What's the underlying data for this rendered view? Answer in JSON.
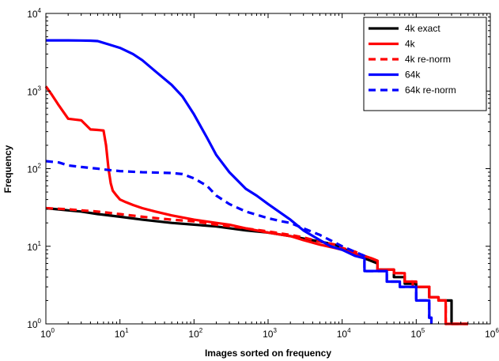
{
  "chart_data": {
    "type": "line",
    "title": "",
    "xlabel": "Images sorted on frequency",
    "ylabel": "Frequency",
    "x_scale": "log",
    "y_scale": "log",
    "xlim": [
      1,
      1000000
    ],
    "ylim": [
      1,
      10000
    ],
    "x_ticks": [
      {
        "value": 1,
        "base": "10",
        "exp": "0"
      },
      {
        "value": 10,
        "base": "10",
        "exp": "1"
      },
      {
        "value": 100,
        "base": "10",
        "exp": "2"
      },
      {
        "value": 1000,
        "base": "10",
        "exp": "3"
      },
      {
        "value": 10000,
        "base": "10",
        "exp": "4"
      },
      {
        "value": 100000,
        "base": "10",
        "exp": "5"
      },
      {
        "value": 1000000,
        "base": "10",
        "exp": "6"
      }
    ],
    "y_ticks": [
      {
        "value": 1,
        "base": "10",
        "exp": "0"
      },
      {
        "value": 10,
        "base": "10",
        "exp": "1"
      },
      {
        "value": 100,
        "base": "10",
        "exp": "2"
      },
      {
        "value": 1000,
        "base": "10",
        "exp": "3"
      },
      {
        "value": 10000,
        "base": "10",
        "exp": "4"
      }
    ],
    "grid": false,
    "legend_position": "top-right",
    "series": [
      {
        "name": "4k exact",
        "color": "#000000",
        "dash": "solid",
        "x": [
          1,
          2,
          3,
          5,
          10,
          20,
          50,
          100,
          200,
          500,
          1000,
          2000,
          5000,
          8000,
          10000,
          15000,
          20000,
          30000,
          30000,
          50000,
          50000,
          70000,
          70000,
          100000,
          100000,
          150000,
          150000,
          200000,
          200000,
          300000,
          300000,
          500000
        ],
        "y": [
          31,
          29,
          28,
          26,
          24,
          22,
          20,
          19,
          18,
          16,
          15,
          13.5,
          11.5,
          10.5,
          9.5,
          8,
          7,
          6,
          5,
          5,
          4,
          4,
          3.3,
          3.3,
          3,
          3,
          2.2,
          2.2,
          2,
          2,
          1,
          1
        ]
      },
      {
        "name": "4k",
        "color": "#ff0000",
        "dash": "solid",
        "x": [
          1,
          1.2,
          1.5,
          2,
          3,
          4,
          5,
          6,
          6.5,
          7,
          7.5,
          8,
          9,
          10,
          12,
          15,
          20,
          30,
          50,
          100,
          200,
          300,
          500,
          1000,
          2000,
          3000,
          5000,
          8000,
          10000,
          15000,
          20000,
          25000,
          30000,
          30000,
          50000,
          50000,
          70000,
          70000,
          90000,
          90000,
          150000,
          150000,
          200000,
          200000,
          250000,
          250000,
          500000
        ],
        "y": [
          1150,
          900,
          650,
          440,
          420,
          320,
          315,
          310,
          200,
          100,
          65,
          52,
          45,
          40,
          37,
          34,
          31,
          28,
          25,
          22,
          20,
          19,
          17,
          15,
          13.5,
          12,
          10.5,
          9.5,
          9,
          8,
          7.5,
          7,
          6.5,
          5,
          5,
          4.5,
          4.5,
          3.5,
          3.5,
          3,
          3,
          2.2,
          2.2,
          2,
          2,
          1,
          1
        ]
      },
      {
        "name": "4k re-norm",
        "color": "#ff0000",
        "dash": "dashed",
        "x": [
          1,
          2,
          3,
          5,
          10,
          20,
          50,
          100,
          200,
          500,
          1000,
          2000,
          3000,
          5000,
          8000,
          10000,
          15000,
          20000,
          30000,
          30000,
          50000,
          50000,
          70000,
          70000,
          100000,
          100000,
          150000,
          150000,
          200000,
          200000,
          250000,
          250000,
          500000
        ],
        "y": [
          31,
          30,
          29,
          28,
          26,
          24,
          22,
          21,
          19,
          17,
          15.5,
          14,
          13,
          11.5,
          10.5,
          9.5,
          8.5,
          7.5,
          6.5,
          5,
          5,
          4.5,
          4.5,
          3.5,
          3.5,
          3,
          3,
          2.2,
          2.2,
          2,
          2,
          1,
          1
        ]
      },
      {
        "name": "64k",
        "color": "#0000ff",
        "dash": "solid",
        "x": [
          1,
          2,
          3,
          4,
          5,
          7,
          10,
          15,
          20,
          30,
          50,
          70,
          100,
          150,
          200,
          300,
          500,
          700,
          1000,
          2000,
          3000,
          5000,
          7000,
          10000,
          15000,
          20000,
          20000,
          40000,
          40000,
          60000,
          60000,
          100000,
          100000,
          150000,
          150000,
          160000,
          160000
        ],
        "y": [
          4500,
          4500,
          4480,
          4450,
          4400,
          4000,
          3600,
          3000,
          2500,
          1800,
          1200,
          850,
          500,
          250,
          150,
          90,
          55,
          45,
          35,
          22,
          16,
          12,
          10,
          9,
          7.5,
          7,
          4.8,
          4.8,
          3.5,
          3.5,
          3,
          3,
          2,
          2,
          1.2,
          1.2,
          1
        ]
      },
      {
        "name": "64k re-norm",
        "color": "#0000ff",
        "dash": "dashed",
        "x": [
          1,
          1.5,
          2,
          3,
          5,
          7,
          10,
          20,
          50,
          70,
          100,
          150,
          200,
          300,
          500,
          1000,
          1500,
          2000,
          3000,
          5000,
          10000,
          20000,
          20000,
          40000,
          40000,
          60000,
          60000,
          100000,
          100000,
          150000,
          150000,
          160000,
          160000
        ],
        "y": [
          125,
          120,
          110,
          105,
          100,
          96,
          93,
          90,
          88,
          85,
          75,
          60,
          45,
          35,
          28,
          23,
          21,
          20,
          17,
          14,
          10,
          7.5,
          4.8,
          4.8,
          3.5,
          3.5,
          3,
          3,
          2,
          2,
          1.2,
          1.2,
          1
        ]
      }
    ]
  }
}
